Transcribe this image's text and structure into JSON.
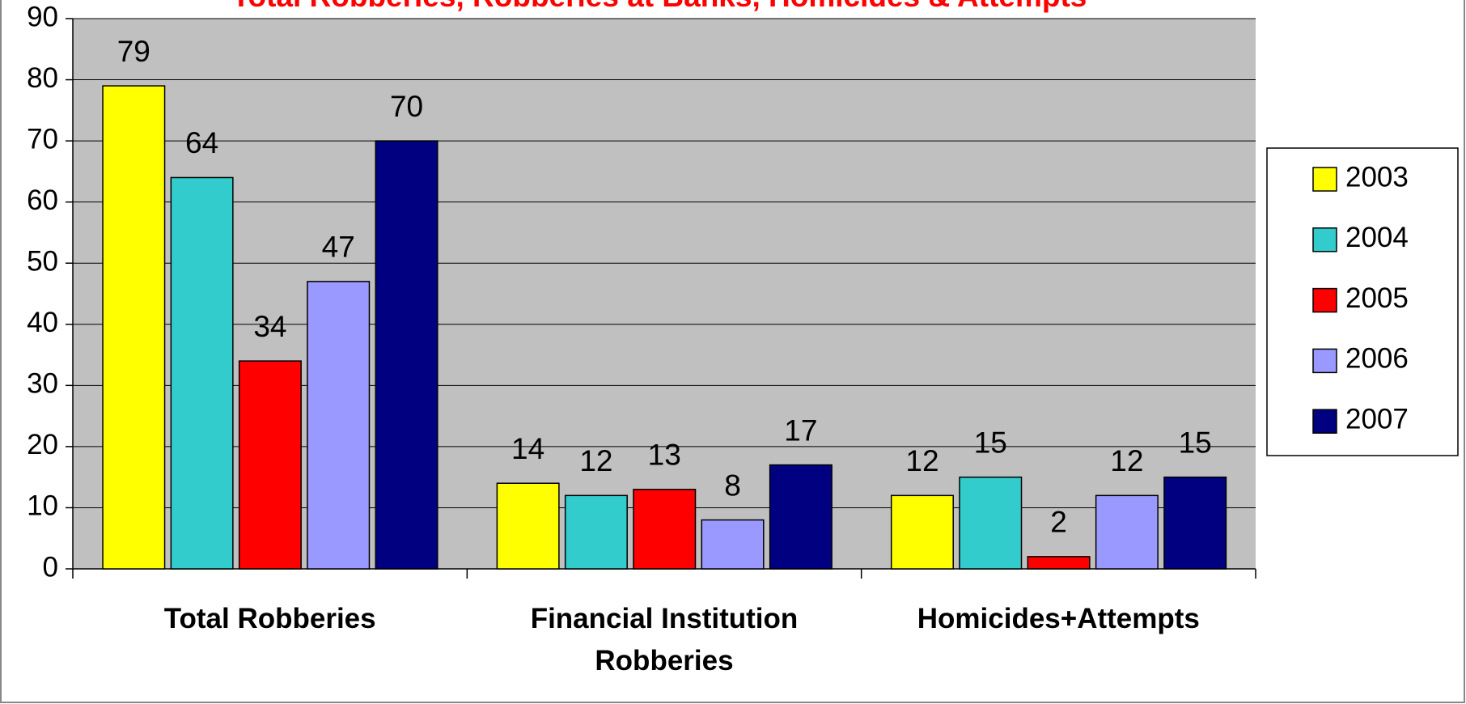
{
  "chart_data": {
    "type": "bar",
    "title": "Total Robberies, Robberies at Banks, Homicides & Attempts",
    "categories": [
      "Total Robberies",
      "Financial Institution Robberies",
      "Homicides+Attempts"
    ],
    "series": [
      {
        "name": "2003",
        "color": "#FFFF00",
        "values": [
          79,
          14,
          12
        ]
      },
      {
        "name": "2004",
        "color": "#33CCCC",
        "values": [
          64,
          12,
          15
        ]
      },
      {
        "name": "2005",
        "color": "#FF0000",
        "values": [
          34,
          13,
          2
        ]
      },
      {
        "name": "2006",
        "color": "#9999FF",
        "values": [
          47,
          8,
          12
        ]
      },
      {
        "name": "2007",
        "color": "#000080",
        "values": [
          70,
          17,
          15
        ]
      }
    ],
    "ylim": [
      0,
      90
    ],
    "yticks": [
      0,
      10,
      20,
      30,
      40,
      50,
      60,
      70,
      80,
      90
    ],
    "grid": true,
    "legend": "right"
  }
}
